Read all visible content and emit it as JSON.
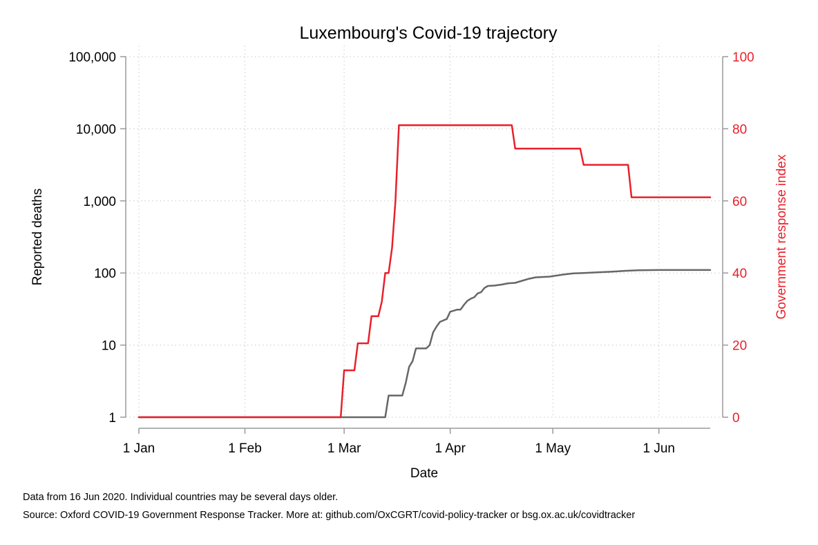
{
  "chart_data": {
    "type": "line",
    "title": "Luxembourg's Covid-19 trajectory",
    "xlabel": "Date",
    "ylabel": "Reported deaths",
    "y2label": "Government response index",
    "x_range": [
      "2020-01-01",
      "2020-06-16"
    ],
    "x_ticks": [
      {
        "date": "2020-01-01",
        "label": "1 Jan"
      },
      {
        "date": "2020-02-01",
        "label": "1 Feb"
      },
      {
        "date": "2020-03-01",
        "label": "1 Mar"
      },
      {
        "date": "2020-04-01",
        "label": "1 Apr"
      },
      {
        "date": "2020-05-01",
        "label": "1 May"
      },
      {
        "date": "2020-06-01",
        "label": "1 Jun"
      }
    ],
    "y_scale": "log",
    "ylim": [
      1,
      100000
    ],
    "y_ticks": [
      {
        "value": 1,
        "label": "1"
      },
      {
        "value": 10,
        "label": "10"
      },
      {
        "value": 100,
        "label": "100"
      },
      {
        "value": 1000,
        "label": "1,000"
      },
      {
        "value": 10000,
        "label": "10,000"
      },
      {
        "value": 100000,
        "label": "100,000"
      }
    ],
    "y2lim": [
      0,
      100
    ],
    "y2_ticks": [
      {
        "value": 0,
        "label": "0"
      },
      {
        "value": 20,
        "label": "20"
      },
      {
        "value": 40,
        "label": "40"
      },
      {
        "value": 60,
        "label": "60"
      },
      {
        "value": 80,
        "label": "80"
      },
      {
        "value": 100,
        "label": "100"
      }
    ],
    "grid": true,
    "series": [
      {
        "axis": "left",
        "color": "#666666",
        "points": [
          [
            "2020-01-01",
            1
          ],
          [
            "2020-03-01",
            1
          ],
          [
            "2020-03-13",
            1
          ],
          [
            "2020-03-14",
            2
          ],
          [
            "2020-03-18",
            2
          ],
          [
            "2020-03-19",
            3
          ],
          [
            "2020-03-20",
            5
          ],
          [
            "2020-03-21",
            6
          ],
          [
            "2020-03-22",
            9
          ],
          [
            "2020-03-25",
            9
          ],
          [
            "2020-03-26",
            10
          ],
          [
            "2020-03-27",
            15
          ],
          [
            "2020-03-28",
            18
          ],
          [
            "2020-03-29",
            21
          ],
          [
            "2020-03-30",
            22
          ],
          [
            "2020-03-31",
            23
          ],
          [
            "2020-04-01",
            29
          ],
          [
            "2020-04-02",
            30
          ],
          [
            "2020-04-03",
            31
          ],
          [
            "2020-04-04",
            31
          ],
          [
            "2020-04-05",
            36
          ],
          [
            "2020-04-06",
            41
          ],
          [
            "2020-04-07",
            44
          ],
          [
            "2020-04-08",
            46
          ],
          [
            "2020-04-09",
            52
          ],
          [
            "2020-04-10",
            54
          ],
          [
            "2020-04-11",
            62
          ],
          [
            "2020-04-12",
            66
          ],
          [
            "2020-04-14",
            67
          ],
          [
            "2020-04-16",
            69
          ],
          [
            "2020-04-18",
            72
          ],
          [
            "2020-04-20",
            73
          ],
          [
            "2020-04-22",
            78
          ],
          [
            "2020-04-24",
            83
          ],
          [
            "2020-04-26",
            87
          ],
          [
            "2020-04-28",
            88
          ],
          [
            "2020-04-30",
            89
          ],
          [
            "2020-05-02",
            92
          ],
          [
            "2020-05-04",
            95
          ],
          [
            "2020-05-07",
            99
          ],
          [
            "2020-05-10",
            100
          ],
          [
            "2020-05-14",
            102
          ],
          [
            "2020-05-18",
            104
          ],
          [
            "2020-05-22",
            107
          ],
          [
            "2020-05-26",
            109
          ],
          [
            "2020-06-01",
            110
          ],
          [
            "2020-06-16",
            110
          ]
        ]
      },
      {
        "axis": "right",
        "color": "#e8202a",
        "points": [
          [
            "2020-01-01",
            0
          ],
          [
            "2020-02-29",
            0
          ],
          [
            "2020-03-01",
            13
          ],
          [
            "2020-03-04",
            13
          ],
          [
            "2020-03-05",
            20.5
          ],
          [
            "2020-03-08",
            20.5
          ],
          [
            "2020-03-09",
            28
          ],
          [
            "2020-03-11",
            28
          ],
          [
            "2020-03-12",
            32
          ],
          [
            "2020-03-13",
            40
          ],
          [
            "2020-03-14",
            40
          ],
          [
            "2020-03-15",
            47
          ],
          [
            "2020-03-16",
            60
          ],
          [
            "2020-03-17",
            81
          ],
          [
            "2020-04-19",
            81
          ],
          [
            "2020-04-20",
            74.5
          ],
          [
            "2020-05-09",
            74.5
          ],
          [
            "2020-05-10",
            70
          ],
          [
            "2020-05-23",
            70
          ],
          [
            "2020-05-24",
            61
          ],
          [
            "2020-06-16",
            61
          ]
        ]
      }
    ],
    "notes": [
      "Data from 16 Jun 2020. Individual countries may be several days older.",
      "Source: Oxford COVID-19 Government Response Tracker. More at: github.com/OxCGRT/covid-policy-tracker or bsg.ox.ac.uk/covidtracker"
    ]
  }
}
